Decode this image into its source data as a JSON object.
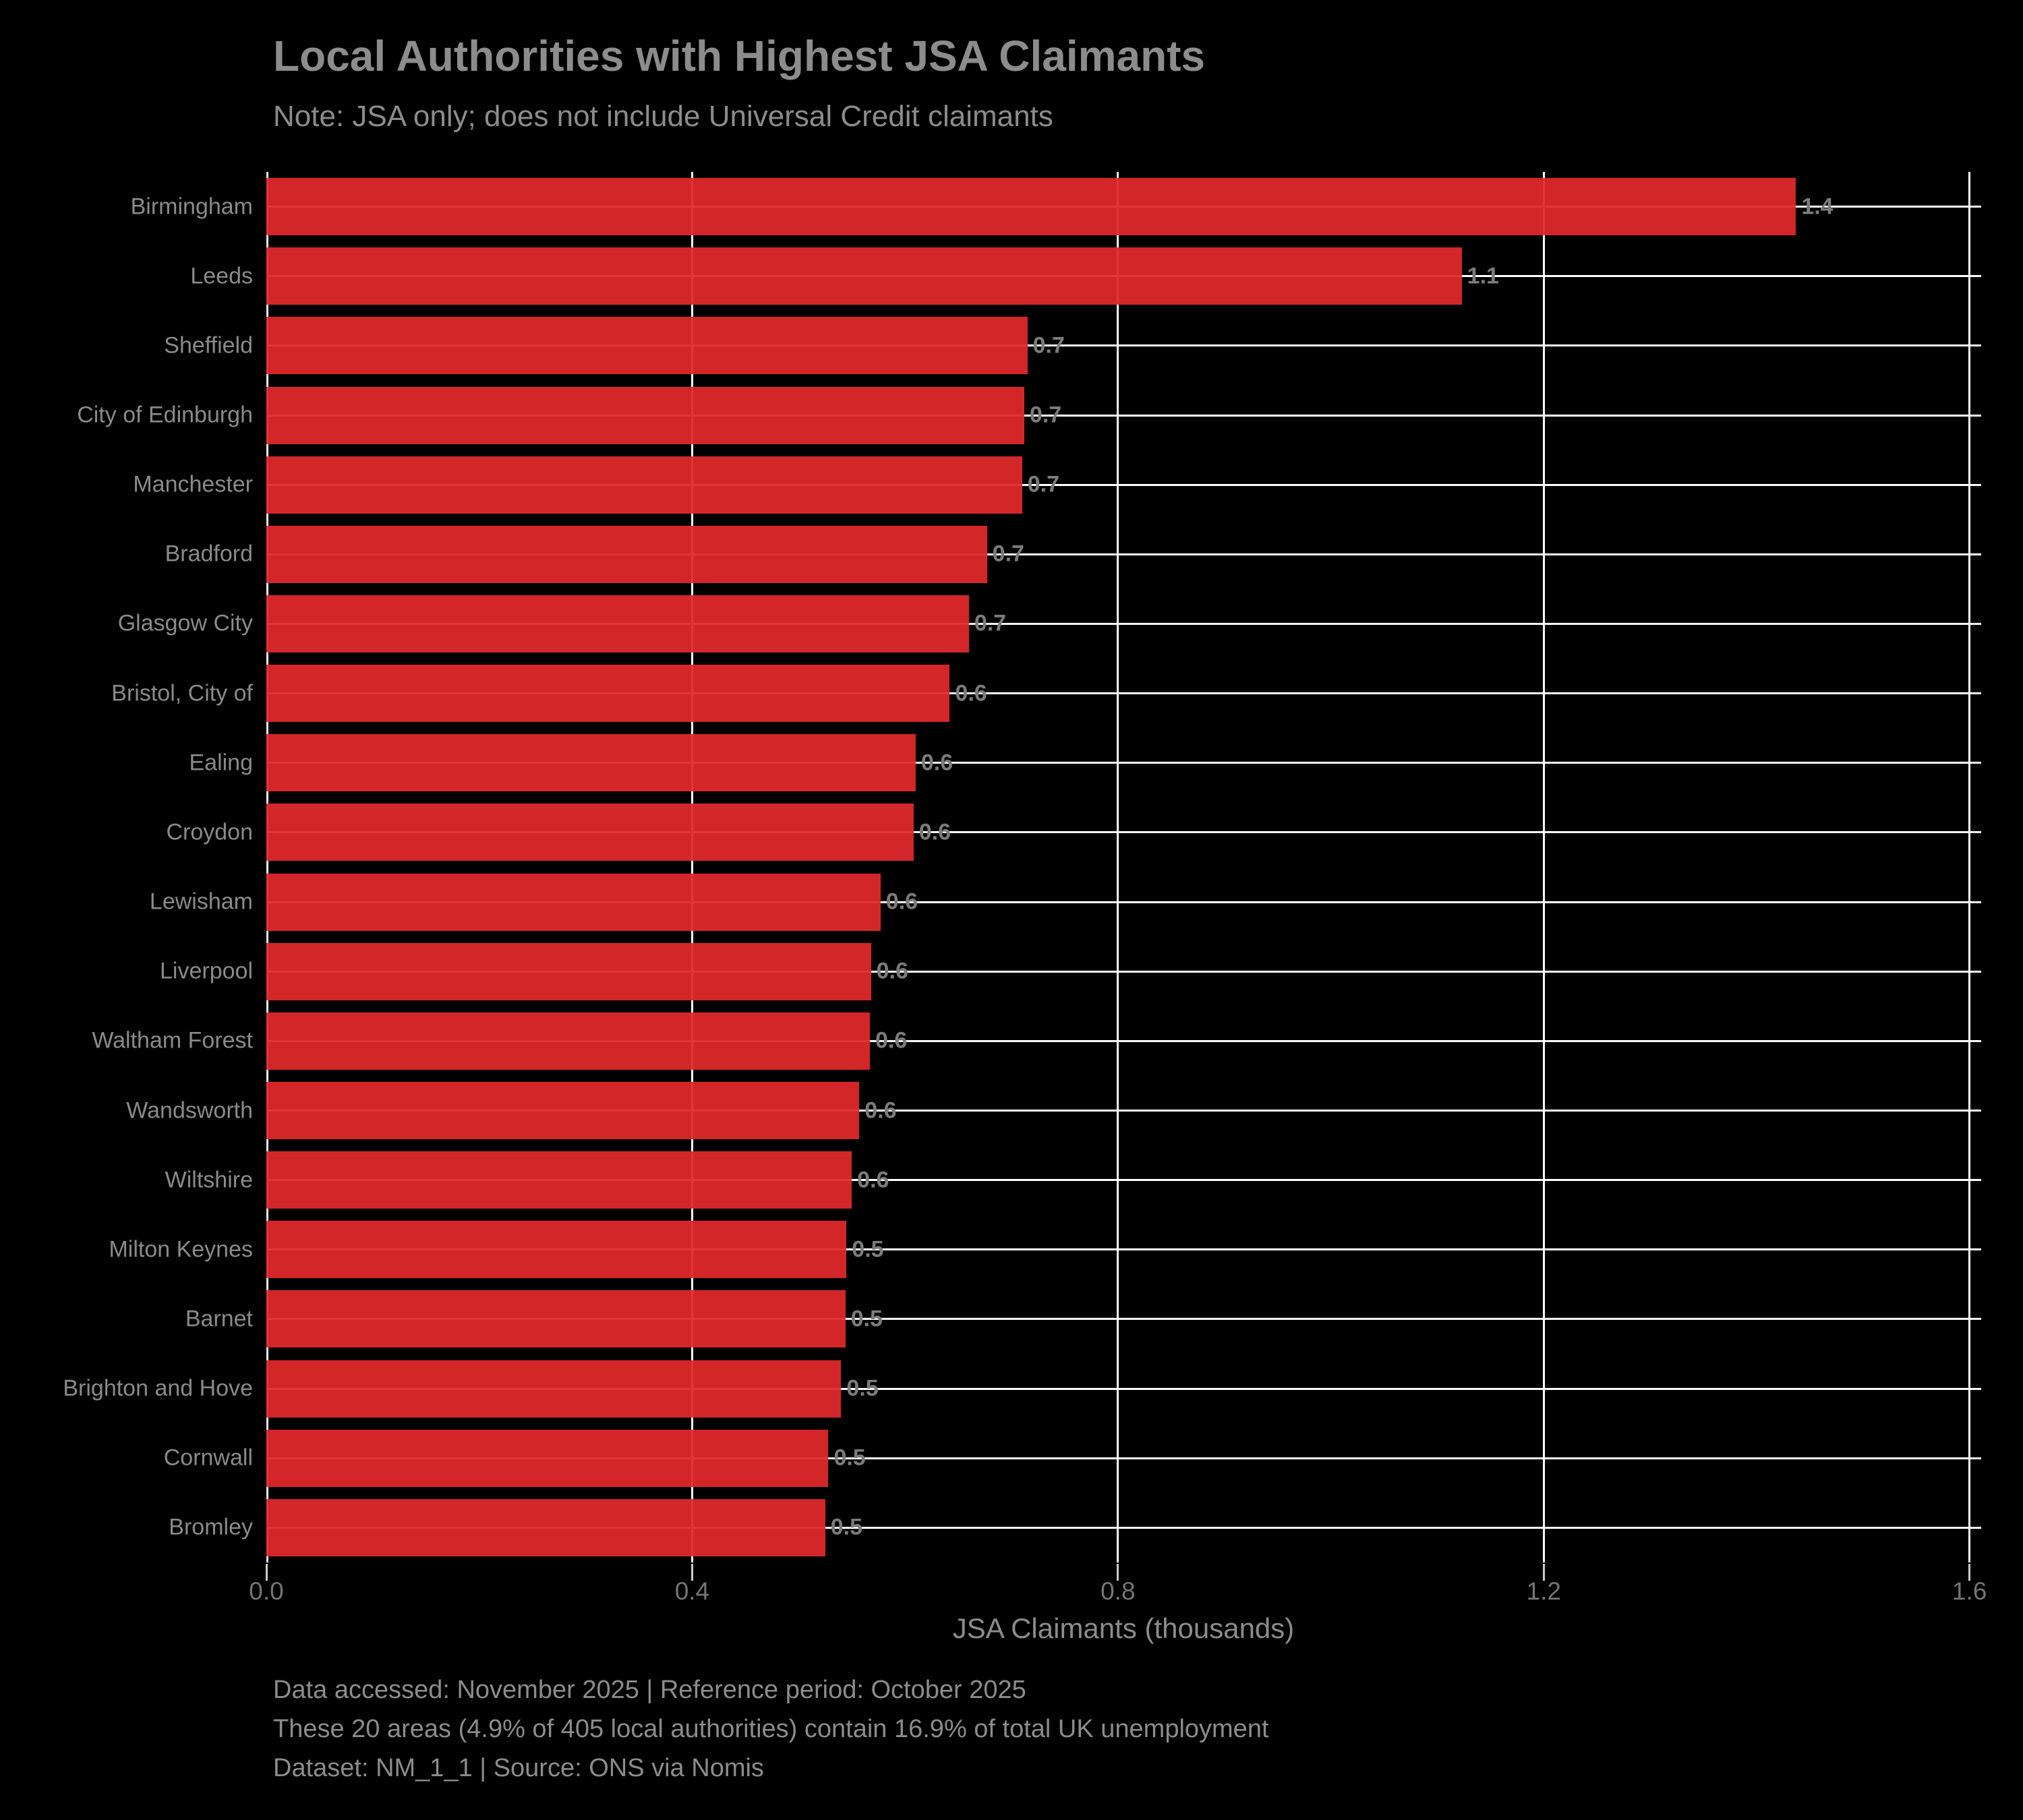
{
  "title": "Local Authorities with Highest JSA Claimants",
  "subtitle": "Note: JSA only; does not include Universal Credit claimants",
  "chart_data": {
    "type": "bar",
    "orientation": "horizontal",
    "title": "Local Authorities with Highest JSA Claimants",
    "subtitle": "Note: JSA only; does not include Universal Credit claimants",
    "categories": [
      "Birmingham",
      "Leeds",
      "Sheffield",
      "City of Edinburgh",
      "Manchester",
      "Bradford",
      "Glasgow City",
      "Bristol, City of",
      "Ealing",
      "Croydon",
      "Lewisham",
      "Liverpool",
      "Waltham Forest",
      "Wandsworth",
      "Wiltshire",
      "Milton Keynes",
      "Barnet",
      "Brighton and Hove",
      "Cornwall",
      "Bromley"
    ],
    "values": [
      1.437,
      1.123,
      0.715,
      0.712,
      0.71,
      0.677,
      0.66,
      0.642,
      0.61,
      0.608,
      0.577,
      0.568,
      0.567,
      0.557,
      0.55,
      0.545,
      0.544,
      0.54,
      0.528,
      0.525
    ],
    "bar_labels": [
      "1.4",
      "1.1",
      "0.7",
      "0.7",
      "0.7",
      "0.7",
      "0.7",
      "0.6",
      "0.6",
      "0.6",
      "0.6",
      "0.6",
      "0.6",
      "0.6",
      "0.6",
      "0.5",
      "0.5",
      "0.5",
      "0.5",
      "0.5"
    ],
    "xlabel": "JSA Claimants (thousands)",
    "xticks": [
      0.0,
      0.4,
      0.8,
      1.2,
      1.6
    ],
    "xtick_labels": [
      "0.0",
      "0.4",
      "0.8",
      "1.2",
      "1.6"
    ],
    "xlim": [
      0,
      1.611
    ],
    "grid": "both",
    "legend": "none",
    "bar_color": "#d62728",
    "background_color": "#000000",
    "text_color": "#8c8c8c"
  },
  "footer": {
    "line1": "Data accessed: November 2025 | Reference period: October 2025",
    "line2": "These 20 areas (4.9% of 405 local authorities) contain 16.9% of total UK unemployment",
    "line3": "Dataset: NM_1_1 | Source: ONS via Nomis"
  }
}
